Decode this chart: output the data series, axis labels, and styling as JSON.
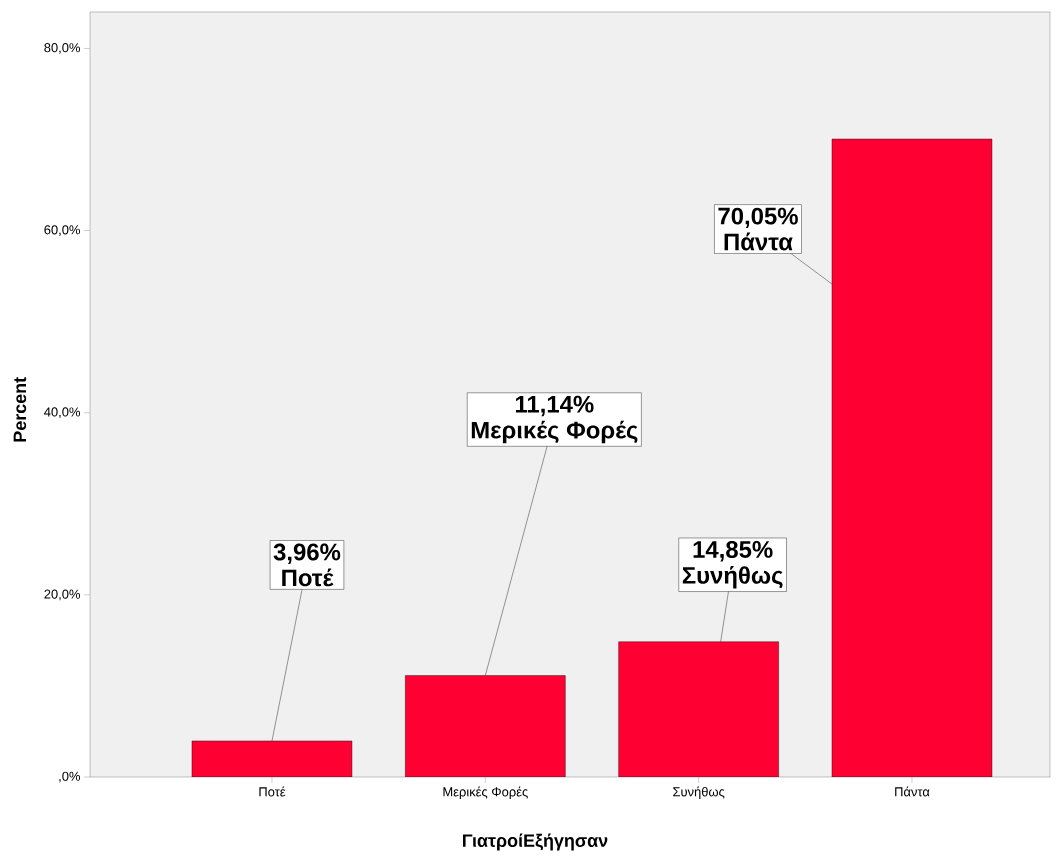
{
  "chart_data": {
    "type": "bar",
    "categories": [
      "Ποτέ",
      "Μερικές Φορές",
      "Συνήθως",
      "Πάντα"
    ],
    "values": [
      3.96,
      11.14,
      14.85,
      70.05
    ],
    "value_labels": [
      "3,96%",
      "11,14%",
      "14,85%",
      "70,05%"
    ],
    "color": "#ff0033",
    "xlabel": "ΓιατροίΕξήγησαν",
    "ylabel": "Percent",
    "ylim": [
      0,
      84
    ],
    "yticks": [
      {
        "value": 0,
        "label": ",0%"
      },
      {
        "value": 20,
        "label": "20,0%"
      },
      {
        "value": 40,
        "label": "40,0%"
      },
      {
        "value": 60,
        "label": "60,0%"
      },
      {
        "value": 80,
        "label": "80,0%"
      }
    ],
    "grid": false
  }
}
